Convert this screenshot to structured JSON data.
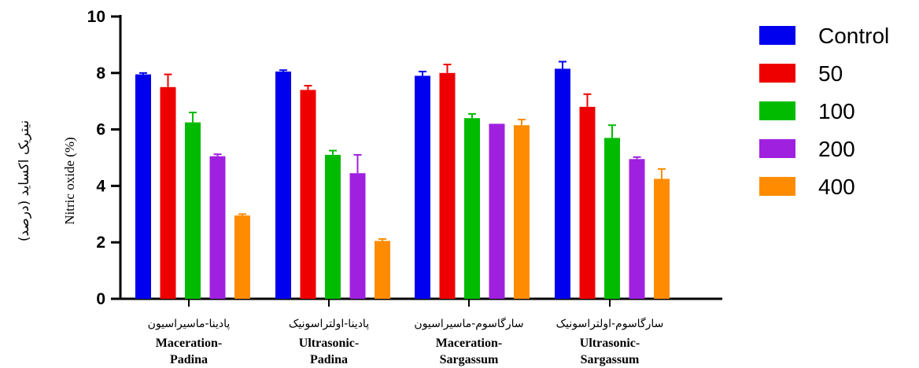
{
  "chart_data": {
    "type": "bar",
    "ylabel": "Nitric oxide (%)",
    "ylabel_fa": "نیتریک اکساید (درصد)",
    "ylim": [
      0,
      10
    ],
    "yticks": [
      "0",
      "2",
      "4",
      "6",
      "8",
      "10"
    ],
    "categories": [
      {
        "fa": "پادینا-ماسیراسیون",
        "en1": "Maceration-",
        "en2": "Padina"
      },
      {
        "fa": "پادینا-اولتراسونیک",
        "en1": "Ultrasonic-",
        "en2": "Padina"
      },
      {
        "fa": "سارگاسوم-ماسیراسیون",
        "en1": "Maceration-",
        "en2": "Sargassum"
      },
      {
        "fa": "سارگاسوم-اولتراسونیک",
        "en1": "Ultrasonic-",
        "en2": "Sargassum"
      }
    ],
    "series": [
      {
        "name": "Control",
        "color": "#0000ee",
        "values": [
          7.95,
          8.05,
          7.9,
          8.15
        ],
        "errors": [
          0.05,
          0.05,
          0.15,
          0.25
        ]
      },
      {
        "name": "50",
        "color": "#ee0000",
        "values": [
          7.5,
          7.4,
          8.0,
          6.8
        ],
        "errors": [
          0.45,
          0.15,
          0.3,
          0.45
        ]
      },
      {
        "name": "100",
        "color": "#00bb00",
        "values": [
          6.25,
          5.1,
          6.4,
          5.7
        ],
        "errors": [
          0.35,
          0.15,
          0.15,
          0.45
        ]
      },
      {
        "name": "200",
        "color": "#a020e0",
        "values": [
          5.05,
          4.45,
          6.2,
          4.95
        ],
        "errors": [
          0.07,
          0.65,
          0.0,
          0.07
        ]
      },
      {
        "name": "400",
        "color": "#ff8c00",
        "values": [
          2.95,
          2.05,
          6.15,
          4.25
        ],
        "errors": [
          0.05,
          0.07,
          0.2,
          0.35
        ]
      }
    ],
    "grid": false,
    "legend": "right"
  }
}
